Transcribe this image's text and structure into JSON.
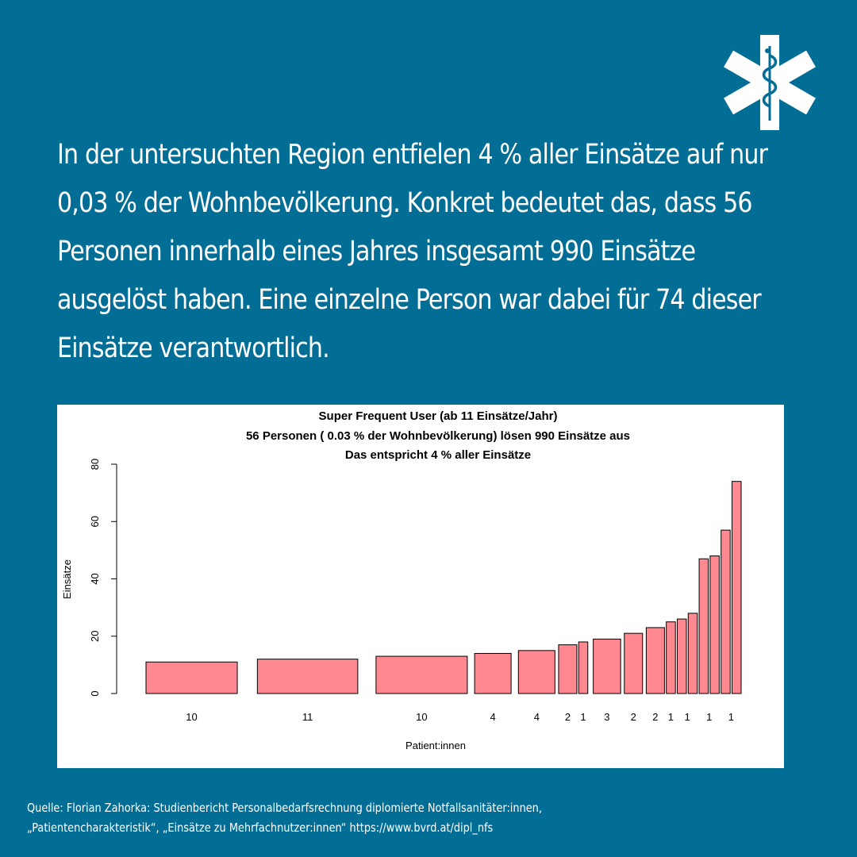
{
  "headline": "In der untersuchten Region entfielen 4 % aller Einsätze auf nur 0,03 % der Wohnbevölkerung. Konkret bedeutet das, dass 56 Personen innerhalb eines Jahres insgesamt 990 Einsätze ausgelöst haben. Eine einzelne Person war dabei für 74 dieser Einsätze verantwortlich.",
  "logo_icon": "star-of-life-icon",
  "colors": {
    "background": "#036E95",
    "bar_fill": "#FF8891",
    "text": "#FFFFFF"
  },
  "chart_data": {
    "type": "bar",
    "title": [
      "Super Frequent User (ab 11 Einsätze/Jahr)",
      "56 Personen ( 0.03 % der Wohnbevölkerung) lösen 990 Einsätze aus",
      "Das entspricht 4 % aller Einsätze"
    ],
    "xlabel": "Patient:innen",
    "ylabel": "Einsätze",
    "ylim": [
      0,
      80
    ],
    "yticks": [
      0,
      20,
      40,
      60,
      80
    ],
    "grid": false,
    "values": [
      11,
      12,
      13,
      14,
      15,
      17,
      18,
      19,
      21,
      23,
      25,
      26,
      28,
      47,
      48,
      57,
      74
    ],
    "widths": [
      10,
      11,
      10,
      4,
      4,
      2,
      1,
      3,
      2,
      2,
      1,
      1,
      1,
      1,
      1,
      1,
      1
    ],
    "xtick_labels": [
      {
        "label": "10",
        "bars": [
          0
        ]
      },
      {
        "label": "11",
        "bars": [
          1
        ]
      },
      {
        "label": "10",
        "bars": [
          2
        ]
      },
      {
        "label": "4",
        "bars": [
          3
        ]
      },
      {
        "label": "4",
        "bars": [
          4
        ]
      },
      {
        "label": "2",
        "bars": [
          5
        ]
      },
      {
        "label": "1",
        "bars": [
          6
        ]
      },
      {
        "label": "3",
        "bars": [
          7
        ]
      },
      {
        "label": "2",
        "bars": [
          8
        ]
      },
      {
        "label": "2",
        "bars": [
          9
        ]
      },
      {
        "label": "1",
        "bars": [
          10
        ]
      },
      {
        "label": "1",
        "bars": [
          11,
          12
        ]
      },
      {
        "label": "1",
        "bars": [
          13,
          14
        ]
      },
      {
        "label": "1",
        "bars": [
          15,
          16
        ]
      }
    ]
  },
  "source": [
    "Quelle: Florian Zahorka: Studienbericht Personalbedarfsrechnung diplomierte Notfallsanitäter:innen,",
    "„Patientencharakteristik“, „Einsätze zu Mehrfachnutzer:innen“ https://www.bvrd.at/dipl_nfs"
  ]
}
